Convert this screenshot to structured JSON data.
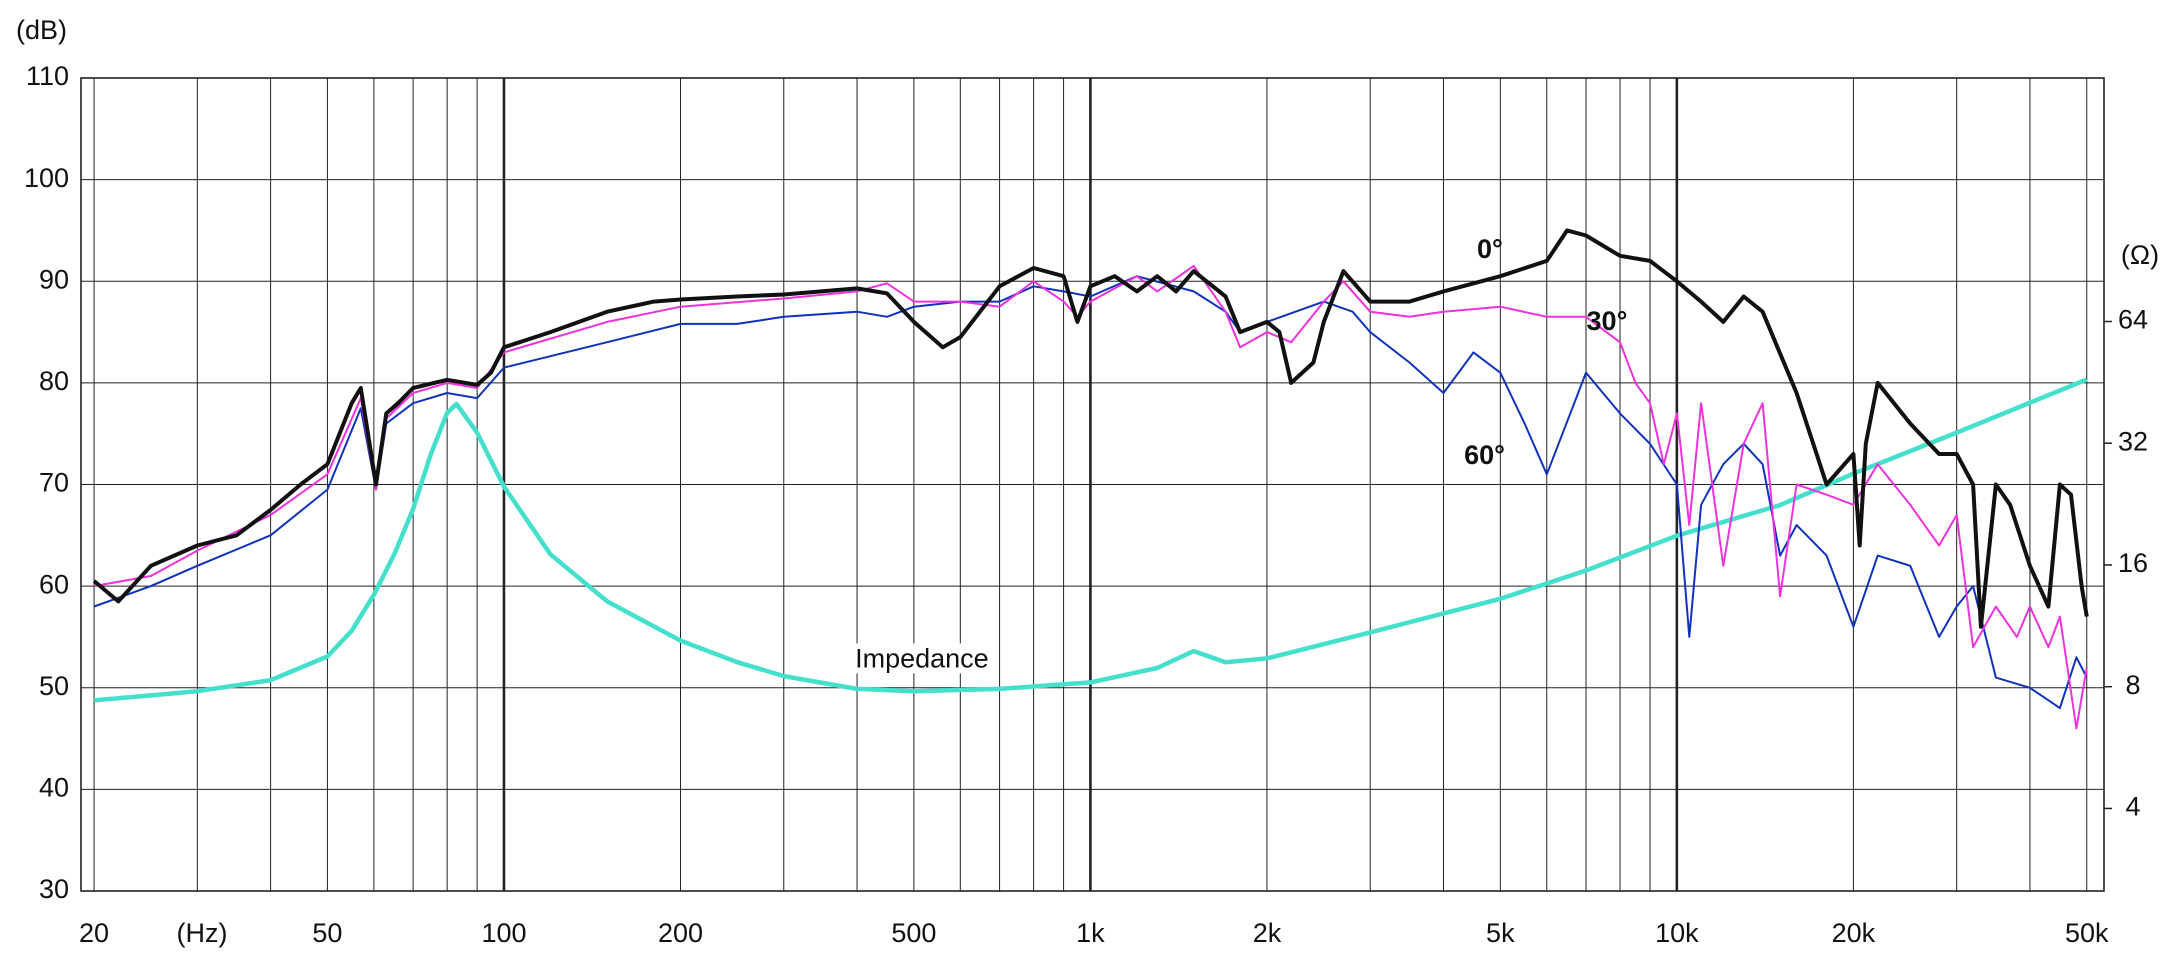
{
  "chart_data": {
    "type": "line",
    "y_label": "(dB)",
    "x_label": "(Hz)",
    "y2_label": "(Ω)",
    "xlim": [
      19,
      53500
    ],
    "xscale": "log",
    "xticks": [
      20,
      50,
      100,
      200,
      500,
      {
        "value": 1000,
        "label": "1k"
      },
      {
        "value": 2000,
        "label": "2k"
      },
      {
        "value": 5000,
        "label": "5k"
      },
      {
        "value": 10000,
        "label": "10k"
      },
      {
        "value": 20000,
        "label": "20k"
      },
      {
        "value": 50000,
        "label": "50k"
      }
    ],
    "x_grid": [
      20,
      30,
      40,
      50,
      60,
      70,
      80,
      90,
      100,
      200,
      300,
      400,
      500,
      600,
      700,
      800,
      900,
      1000,
      2000,
      3000,
      4000,
      5000,
      6000,
      7000,
      8000,
      9000,
      10000,
      20000,
      30000,
      40000,
      50000
    ],
    "ylim": [
      30,
      110
    ],
    "yticks": [
      30,
      40,
      50,
      60,
      70,
      80,
      90,
      100,
      110
    ],
    "y2lim": [
      2.5,
      256
    ],
    "y2scale": "log",
    "y2ticks": [
      4,
      8,
      16,
      32,
      64
    ],
    "grid": true,
    "series": [
      {
        "name": "0°",
        "color": "#111111",
        "x": [
          20,
          22,
          25,
          30,
          35,
          40,
          45,
          50,
          55,
          57,
          60.5,
          63,
          66,
          70,
          80,
          90,
          95,
          100,
          120,
          150,
          180,
          200,
          250,
          300,
          400,
          450,
          500,
          560,
          600,
          700,
          800,
          900,
          950,
          1000,
          1100,
          1200,
          1300,
          1400,
          1500,
          1700,
          1800,
          2000,
          2100,
          2200,
          2400,
          2500,
          2700,
          3000,
          3500,
          4000,
          5000,
          6000,
          6500,
          7000,
          8000,
          9000,
          10000,
          11000,
          12000,
          13000,
          14000,
          16000,
          18000,
          20000,
          20500,
          21000,
          22000,
          25000,
          28000,
          30000,
          32000,
          33000,
          35000,
          37000,
          40000,
          43000,
          45000,
          47000,
          49000,
          50000
        ],
        "values": [
          60.5,
          58.5,
          62,
          64,
          65,
          67.5,
          70,
          72,
          78,
          79.5,
          70,
          77,
          78,
          79.5,
          80.3,
          79.8,
          81,
          83.5,
          85,
          87,
          88,
          88.2,
          88.5,
          88.7,
          89.3,
          88.8,
          86,
          83.5,
          84.5,
          89.5,
          91.3,
          90.5,
          86,
          89.5,
          90.5,
          89,
          90.5,
          89,
          91,
          88.5,
          85,
          86,
          85,
          80,
          82,
          86,
          91,
          88,
          88,
          89,
          90.5,
          92,
          95,
          94.5,
          92.5,
          92,
          90,
          88,
          86,
          88.5,
          87,
          79,
          70,
          73,
          64,
          74,
          80,
          76,
          73,
          73,
          70,
          56,
          70,
          68,
          62,
          58,
          70,
          69,
          60,
          57
        ]
      },
      {
        "name": "30°",
        "color": "#ee33dd",
        "x": [
          20,
          25,
          30,
          40,
          50,
          57,
          60.5,
          63,
          70,
          80,
          90,
          100,
          150,
          200,
          300,
          400,
          450,
          500,
          600,
          700,
          800,
          900,
          950,
          1000,
          1200,
          1300,
          1500,
          1700,
          1800,
          2000,
          2200,
          2500,
          2700,
          3000,
          3500,
          4000,
          5000,
          6000,
          7000,
          8000,
          8500,
          9000,
          9500,
          10000,
          10500,
          11000,
          12000,
          13000,
          14000,
          15000,
          16000,
          18000,
          20000,
          22000,
          25000,
          28000,
          30000,
          32000,
          35000,
          38000,
          40000,
          43000,
          45000,
          48000,
          50000
        ],
        "values": [
          60,
          61,
          63.5,
          67,
          71,
          78.5,
          69.5,
          76.5,
          79,
          80,
          79.5,
          83,
          86,
          87.5,
          88.3,
          89,
          89.8,
          88,
          88,
          87.5,
          90,
          88,
          86.5,
          88,
          90.5,
          89,
          91.5,
          87,
          83.5,
          85,
          84,
          88,
          90,
          87,
          86.5,
          87,
          87.5,
          86.5,
          86.5,
          84,
          80,
          78,
          72,
          77,
          66,
          78,
          62,
          74,
          78,
          59,
          70,
          69,
          68,
          72,
          68,
          64,
          67,
          54,
          58,
          55,
          58,
          54,
          57,
          46,
          52
        ]
      },
      {
        "name": "60°",
        "color": "#1133bb",
        "x": [
          20,
          25,
          30,
          40,
          50,
          57,
          60.5,
          63,
          70,
          80,
          90,
          100,
          150,
          200,
          250,
          300,
          400,
          450,
          500,
          600,
          700,
          800,
          900,
          1000,
          1200,
          1500,
          1700,
          1800,
          2000,
          2500,
          2800,
          3000,
          3500,
          4000,
          4500,
          5000,
          5500,
          6000,
          7000,
          8000,
          9000,
          10000,
          10500,
          11000,
          12000,
          13000,
          14000,
          15000,
          16000,
          18000,
          20000,
          22000,
          25000,
          28000,
          30000,
          32000,
          35000,
          40000,
          45000,
          48000,
          50000
        ],
        "values": [
          58,
          60,
          62,
          65,
          69.5,
          77.5,
          69.5,
          76,
          78,
          79,
          78.5,
          81.5,
          84,
          85.8,
          85.8,
          86.5,
          87,
          86.5,
          87.5,
          88,
          88,
          89.5,
          89,
          88.5,
          90.5,
          89,
          87,
          85,
          86,
          88,
          87,
          85,
          82,
          79,
          83,
          81,
          76,
          71,
          81,
          77,
          74,
          70,
          55,
          68,
          72,
          74,
          72,
          63,
          66,
          63,
          56,
          63,
          62,
          55,
          58,
          60,
          51,
          50,
          48,
          53,
          51
        ]
      },
      {
        "name": "Impedance",
        "color": "#44e0cc",
        "axis": "y2",
        "x": [
          20,
          30,
          40,
          50,
          55,
          60,
          65,
          70,
          75,
          80,
          83,
          90,
          100,
          120,
          150,
          200,
          250,
          300,
          400,
          500,
          700,
          1000,
          1300,
          1500,
          1700,
          2000,
          3000,
          5000,
          7000,
          10000,
          15000,
          20000,
          30000,
          50000
        ],
        "values": [
          7.4,
          7.8,
          8.3,
          9.5,
          11,
          13.5,
          17,
          22,
          30,
          38,
          40,
          34,
          25,
          17,
          13,
          10.4,
          9.2,
          8.5,
          7.9,
          7.8,
          7.9,
          8.2,
          8.9,
          9.8,
          9.2,
          9.4,
          10.9,
          13.2,
          15.5,
          18.9,
          22.5,
          26.9,
          34,
          46
        ]
      }
    ]
  }
}
